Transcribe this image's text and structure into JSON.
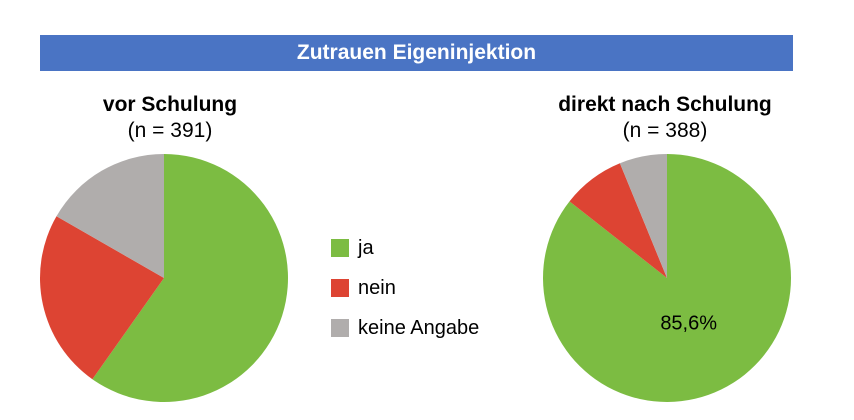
{
  "banner_title": "Zutrauen Eigeninjektion",
  "legend": [
    {
      "label": "ja",
      "color": "#7cbc42"
    },
    {
      "label": "nein",
      "color": "#dd4433"
    },
    {
      "label": "keine Angabe",
      "color": "#b0adac"
    }
  ],
  "chart_data": [
    {
      "type": "pie",
      "title": "vor Schulung",
      "subtitle": "(n = 391)",
      "categories": [
        "ja",
        "nein",
        "keine Angabe"
      ],
      "values": [
        59.8,
        23.5,
        16.7
      ],
      "data_labels": [
        "",
        "",
        ""
      ]
    },
    {
      "type": "pie",
      "title": "direkt nach Schulung",
      "subtitle": "(n = 388)",
      "categories": [
        "ja",
        "nein",
        "keine Angabe"
      ],
      "values": [
        85.6,
        8.2,
        6.2
      ],
      "data_labels": [
        "85,6%",
        "",
        ""
      ]
    }
  ]
}
